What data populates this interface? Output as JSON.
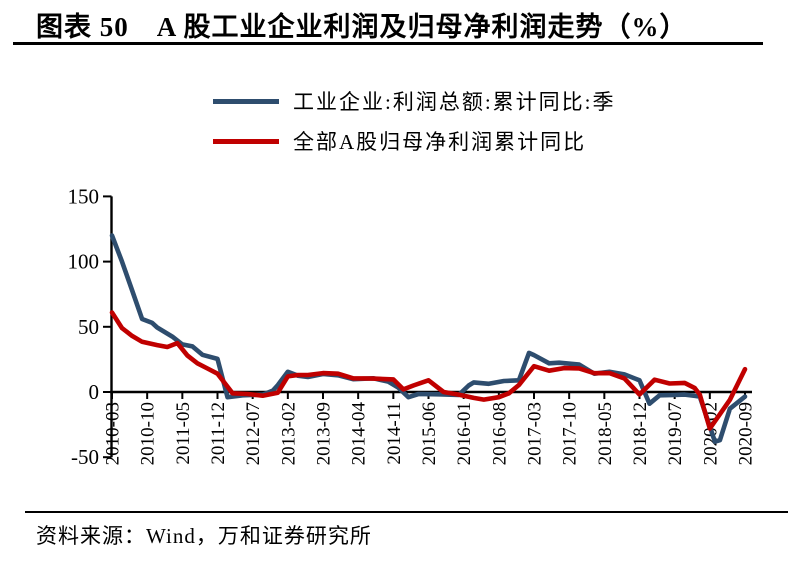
{
  "header": {
    "title": "图表 50　A 股工业企业利润及归母净利润走势（%）"
  },
  "legend": {
    "items": [
      {
        "label": "工业企业:利润总额:累计同比:季",
        "color": "#2E4D6E"
      },
      {
        "label": "全部A股归母净利润累计同比",
        "color": "#C00000"
      }
    ]
  },
  "footer": {
    "source": "资料来源：Wind，万和证券研究所"
  },
  "colors": {
    "axis": "#000000",
    "industrial_line": "#2E4D6E",
    "a_share_line": "#C00000"
  },
  "chart_data": {
    "type": "line",
    "title": "A股工业企业利润及归母净利润走势（%）",
    "xlabel": "",
    "ylabel": "",
    "x_start": "2010-03",
    "x_end": "2020-09",
    "x_total_months": 126,
    "x_tick_month_step": 7,
    "x_tick_labels": [
      "2010-03",
      "2010-10",
      "2011-05",
      "2011-12",
      "2012-07",
      "2013-02",
      "2013-09",
      "2014-04",
      "2014-11",
      "2015-06",
      "2016-01",
      "2016-08",
      "2017-03",
      "2017-10",
      "2018-05",
      "2018-12",
      "2019-07",
      "2020-02",
      "2020-09"
    ],
    "y_ticks": [
      150,
      100,
      50,
      0,
      -50
    ],
    "ylim": [
      -50,
      150
    ],
    "grid": false,
    "legend_position": "top",
    "series": [
      {
        "name": "工业企业:利润总额:累计同比:季",
        "color": "#2E4D6E",
        "points_format": "[months_since_2010-03, percent]",
        "points": [
          [
            0,
            120
          ],
          [
            2,
            100
          ],
          [
            4,
            78
          ],
          [
            6,
            56
          ],
          [
            8,
            53
          ],
          [
            9,
            49.5
          ],
          [
            12,
            42.5
          ],
          [
            14,
            36.5
          ],
          [
            16,
            35
          ],
          [
            18,
            28.5
          ],
          [
            21,
            25.4
          ],
          [
            23,
            -4
          ],
          [
            26,
            -2.5
          ],
          [
            30,
            -2
          ],
          [
            32,
            1
          ],
          [
            33,
            5.3
          ],
          [
            35,
            15.5
          ],
          [
            37,
            12.5
          ],
          [
            39,
            11.5
          ],
          [
            42,
            13.8
          ],
          [
            45,
            12.8
          ],
          [
            48,
            9.8
          ],
          [
            52,
            10.5
          ],
          [
            55,
            8
          ],
          [
            57,
            3.3
          ],
          [
            59,
            -4
          ],
          [
            61,
            -1.5
          ],
          [
            65,
            -1.8
          ],
          [
            69,
            -2.3
          ],
          [
            71,
            5
          ],
          [
            72,
            7.4
          ],
          [
            75,
            6.3
          ],
          [
            78,
            8.4
          ],
          [
            81,
            9
          ],
          [
            83,
            30
          ],
          [
            84,
            28.3
          ],
          [
            87,
            22
          ],
          [
            89,
            22.5
          ],
          [
            93,
            21
          ],
          [
            96,
            14
          ],
          [
            99,
            15.5
          ],
          [
            102,
            13.5
          ],
          [
            105,
            9
          ],
          [
            107,
            -9
          ],
          [
            109,
            -2.5
          ],
          [
            112,
            -2.3
          ],
          [
            114,
            -2
          ],
          [
            116,
            -3
          ],
          [
            117,
            -3.5
          ],
          [
            120,
            -38
          ],
          [
            121,
            -37
          ],
          [
            123,
            -12.8
          ],
          [
            126,
            -3.5
          ]
        ]
      },
      {
        "name": "全部A股归母净利润累计同比",
        "color": "#C00000",
        "points_format": "[months_since_2010-03, percent]",
        "points": [
          [
            0,
            61
          ],
          [
            2,
            49
          ],
          [
            4,
            43
          ],
          [
            6,
            38.5
          ],
          [
            9,
            36
          ],
          [
            11,
            34.5
          ],
          [
            13,
            37.5
          ],
          [
            15,
            28
          ],
          [
            17,
            22
          ],
          [
            19,
            18
          ],
          [
            21,
            14
          ],
          [
            24,
            -1
          ],
          [
            27,
            -1.5
          ],
          [
            30,
            -2.8
          ],
          [
            33,
            -0.5
          ],
          [
            35,
            12
          ],
          [
            37,
            13
          ],
          [
            39,
            13
          ],
          [
            42,
            14.5
          ],
          [
            45,
            14
          ],
          [
            48,
            10.5
          ],
          [
            52,
            10.3
          ],
          [
            56,
            9.7
          ],
          [
            58,
            2
          ],
          [
            60,
            5
          ],
          [
            63,
            9
          ],
          [
            66,
            0
          ],
          [
            69,
            -2
          ],
          [
            72,
            -4.5
          ],
          [
            74,
            -5.8
          ],
          [
            77,
            -4
          ],
          [
            79,
            -1
          ],
          [
            81,
            5.4
          ],
          [
            84,
            19.8
          ],
          [
            87,
            16.3
          ],
          [
            90,
            18.3
          ],
          [
            93,
            18.1
          ],
          [
            96,
            14.4
          ],
          [
            99,
            14.5
          ],
          [
            102,
            10.4
          ],
          [
            105,
            -1.9
          ],
          [
            108,
            9.4
          ],
          [
            111,
            6.5
          ],
          [
            114,
            7
          ],
          [
            116,
            3
          ],
          [
            117,
            -2
          ],
          [
            119,
            -28
          ],
          [
            121,
            -17
          ],
          [
            123,
            -6
          ],
          [
            126,
            17.5
          ]
        ]
      }
    ]
  }
}
